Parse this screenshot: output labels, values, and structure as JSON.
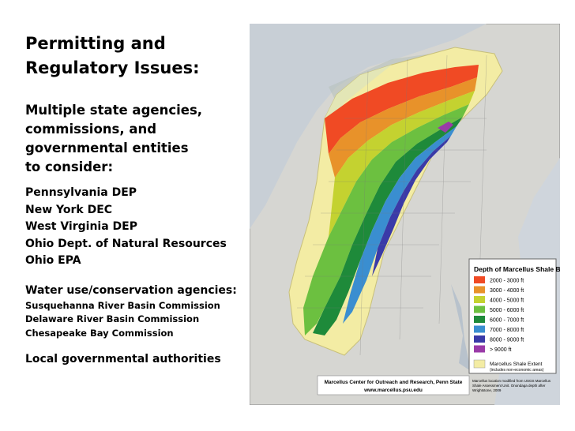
{
  "slide": {
    "title_line1": "Permitting and",
    "title_line2": "Regulatory Issues:",
    "subtitle_lines": [
      "Multiple state agencies,",
      "commissions, and",
      "governmental entities",
      "to consider:"
    ],
    "state_agencies": [
      "Pennsylvania DEP",
      "New York DEC",
      "West Virginia DEP",
      "Ohio Dept. of Natural Resources",
      "Ohio EPA"
    ],
    "water_heading": "Water use/conservation agencies:",
    "water_agencies": [
      "Susquehanna River Basin Commission",
      "Delaware River Basin Commission",
      "Chesapeake Bay Commission"
    ],
    "local": "Local governmental authorities"
  },
  "map": {
    "legend_title": "Depth of Marcellus Shale Base",
    "legend_items": [
      {
        "label": "2000 - 3000 ft",
        "color": "#f04a24"
      },
      {
        "label": "3000 - 4000 ft",
        "color": "#e8922a"
      },
      {
        "label": "4000 - 5000 ft",
        "color": "#c4d230"
      },
      {
        "label": "5000 - 6000 ft",
        "color": "#6cc040"
      },
      {
        "label": "6000 - 7000 ft",
        "color": "#1e8a3a"
      },
      {
        "label": "7000 - 8000 ft",
        "color": "#3a8ed0"
      },
      {
        "label": "8000 - 9000 ft",
        "color": "#3a3aa8"
      },
      {
        "label": "> 9000 ft",
        "color": "#9a3aa8"
      }
    ],
    "extent_label": "Marcellus Shale Extent",
    "extent_sublabel": "(includes non-economic areas)",
    "extent_color": "#f3eca4",
    "credit_line1": "Marcellus Center for Outreach and Research, Penn State",
    "credit_line2": "www.marcellus.psu.edu",
    "source_note_line1": "Marcellus location modified from USGS Marcellus",
    "source_note_line2": "Shale Assessment Unit. Onondaga depth after",
    "source_note_line3": "Wrightstone, 2009"
  }
}
